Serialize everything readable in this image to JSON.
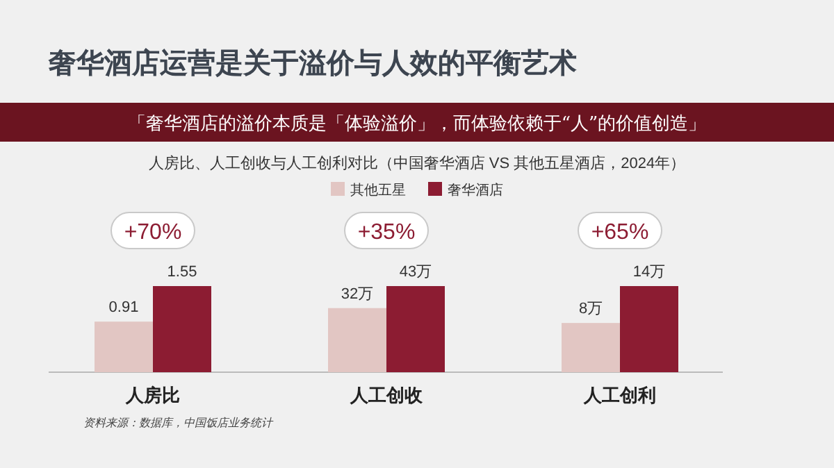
{
  "chart_data": [
    {
      "type": "bar",
      "title": "奢华酒店运营是关于溢价与人效的平衡艺术",
      "subtitle": "「奢华酒店的溢价本质是「体验溢价」，而体验依赖于“人”的价值创造」",
      "categories": [
        "人房比"
      ],
      "legend": "top",
      "annotations": [
        "+70%",
        "人房比、人工创收与人工创利对比（中国奢华酒店 VS 其他五星酒店，2024年）",
        "资料来源：数据库，中国饭店业务统计"
      ],
      "series": [
        {
          "name": "其他五星",
          "color": "#e2c6c3",
          "values": [
            0.91
          ],
          "value_labels": [
            "0.91"
          ]
        },
        {
          "name": "奢华酒店",
          "color": "#8c1c32",
          "values": [
            1.55
          ],
          "value_labels": [
            "1.55"
          ]
        }
      ]
    },
    {
      "type": "bar",
      "categories": [
        "人工创收"
      ],
      "annotations": [
        "+35%"
      ],
      "series": [
        {
          "color": "#e2c6c3",
          "values": [
            32
          ],
          "value_labels": [
            "32万"
          ]
        },
        {
          "color": "#8c1c32",
          "values": [
            43
          ],
          "value_labels": [
            "43万"
          ]
        }
      ]
    },
    {
      "type": "bar",
      "categories": [
        "人工创利"
      ],
      "annotations": [
        "+65%"
      ],
      "series": [
        {
          "color": "#e2c6c3",
          "values": [
            8
          ],
          "value_labels": [
            "8万"
          ]
        },
        {
          "color": "#8c1c32",
          "values": [
            14
          ],
          "value_labels": [
            "14万"
          ]
        }
      ]
    }
  ]
}
